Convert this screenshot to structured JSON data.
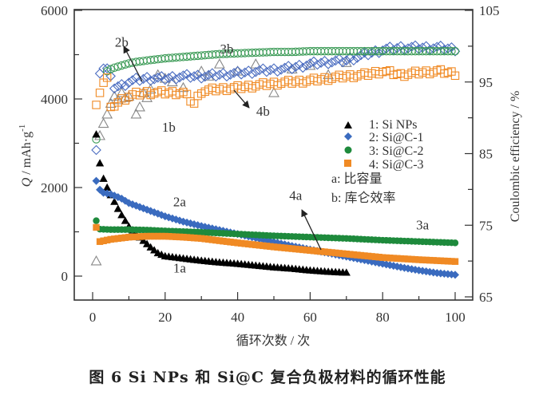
{
  "caption": "图 6   Si NPs 和 Si@C 复合负极材料的循环性能",
  "chart_data": {
    "type": "scatter",
    "title": "",
    "xlabel": "循环次数 / 次",
    "ylabel": "Q / mAh·g⁻¹",
    "ylabel_italic_part": "Q",
    "ylabel_rest": " / mAh·g",
    "ylabel_sup": "-1",
    "y2label": "Coulombic efficiency / %",
    "xlim": [
      -5,
      105
    ],
    "ylim": [
      -540,
      6000
    ],
    "y2lim": [
      65,
      105
    ],
    "xticks": [
      0,
      20,
      40,
      60,
      80,
      100
    ],
    "yticks": [
      0,
      2000,
      4000,
      6000
    ],
    "y2ticks": [
      65,
      75,
      85,
      95,
      105
    ],
    "legend": {
      "placement": "center-right",
      "entries": [
        {
          "label": "1: Si NPs",
          "marker": "triangle",
          "color": "#000000"
        },
        {
          "label": "2: Si@C-1",
          "marker": "diamond",
          "color": "#3a6bbf"
        },
        {
          "label": "3: Si@C-2",
          "marker": "circle",
          "color": "#1e8a3c"
        },
        {
          "label": "4: Si@C-3",
          "marker": "square",
          "color": "#f08a24"
        }
      ],
      "notes": [
        "a: 比容量",
        "b: 库仑效率"
      ]
    },
    "annotations": [
      {
        "text": "1a",
        "x": 24,
        "y": 80,
        "axis": "left"
      },
      {
        "text": "2a",
        "x": 24,
        "y": 1580,
        "axis": "left"
      },
      {
        "text": "3a",
        "x": 91,
        "y": 1050,
        "axis": "left"
      },
      {
        "text": "4a",
        "x": 56,
        "y": 1720,
        "axis": "left"
      },
      {
        "text": "1b",
        "x": 21,
        "y": 3260,
        "axis": "left"
      },
      {
        "text": "2b",
        "x": 8,
        "y": 5180,
        "axis": "left"
      },
      {
        "text": "3b",
        "x": 37,
        "y": 5030,
        "axis": "left"
      },
      {
        "text": "4b",
        "x": 47,
        "y": 3620,
        "axis": "left"
      }
    ],
    "series": [
      {
        "name": "1: Si NPs",
        "kind": "capacity",
        "axis": "left",
        "marker": "triangle",
        "filled": true,
        "color": "#000000",
        "x": [
          1,
          2,
          3,
          4,
          5,
          6,
          7,
          8,
          9,
          10,
          12,
          14,
          16,
          18,
          20,
          25,
          30,
          35,
          40,
          45,
          50,
          55,
          60,
          65,
          70
        ],
        "values": [
          3200,
          2550,
          2200,
          2000,
          1830,
          1680,
          1520,
          1380,
          1250,
          1120,
          950,
          800,
          650,
          520,
          450,
          400,
          350,
          310,
          280,
          240,
          200,
          170,
          130,
          100,
          80
        ]
      },
      {
        "name": "2: Si@C-1",
        "kind": "capacity",
        "axis": "left",
        "marker": "diamond",
        "filled": true,
        "color": "#3a6bbf",
        "x": [
          1,
          2,
          3,
          5,
          8,
          10,
          15,
          20,
          25,
          30,
          35,
          40,
          45,
          50,
          55,
          60,
          65,
          70,
          75,
          80,
          85,
          90,
          95,
          100
        ],
        "values": [
          2150,
          1950,
          1880,
          1850,
          1750,
          1650,
          1500,
          1350,
          1230,
          1130,
          1040,
          950,
          860,
          770,
          680,
          600,
          520,
          440,
          360,
          280,
          200,
          130,
          70,
          30
        ]
      },
      {
        "name": "3: Si@C-2",
        "kind": "capacity",
        "axis": "left",
        "marker": "circle",
        "filled": true,
        "color": "#1e8a3c",
        "x": [
          1,
          2,
          5,
          10,
          15,
          20,
          30,
          40,
          50,
          60,
          70,
          80,
          90,
          100
        ],
        "values": [
          1250,
          1060,
          1050,
          1050,
          1040,
          1020,
          990,
          950,
          910,
          880,
          850,
          810,
          780,
          750
        ]
      },
      {
        "name": "4: Si@C-3",
        "kind": "capacity",
        "axis": "left",
        "marker": "square",
        "filled": true,
        "color": "#f08a24",
        "x": [
          1,
          2,
          5,
          10,
          15,
          20,
          25,
          30,
          40,
          50,
          60,
          70,
          80,
          90,
          100
        ],
        "values": [
          1100,
          780,
          830,
          880,
          900,
          900,
          880,
          850,
          750,
          660,
          580,
          500,
          420,
          370,
          330
        ]
      },
      {
        "name": "1: Si NPs",
        "kind": "coulombic_efficiency",
        "axis": "right",
        "marker": "triangle",
        "filled": false,
        "color": "#888888",
        "x": [
          1,
          2,
          3,
          4,
          5,
          6,
          7,
          8,
          9,
          10,
          12,
          13,
          14,
          15,
          16,
          18,
          20,
          22,
          25,
          30,
          32,
          35,
          40,
          45,
          50,
          55,
          60,
          65,
          70
        ],
        "values": [
          70,
          87.5,
          89.2,
          90.5,
          92,
          93,
          92.5,
          93.5,
          92.8,
          93,
          90.5,
          91.5,
          93.5,
          92.8,
          94,
          96,
          95.5,
          95,
          94.2,
          96.5,
          95.8,
          97.5,
          96.5,
          97.5,
          93.5,
          96.8,
          97.3,
          96,
          97.7
        ]
      },
      {
        "name": "2: Si@C-1",
        "kind": "coulombic_efficiency",
        "axis": "right",
        "marker": "diamond",
        "filled": false,
        "color": "#4a6cc0",
        "x": [
          1,
          2,
          3,
          4,
          5,
          6,
          8,
          10,
          12,
          15,
          20,
          25,
          30,
          35,
          40,
          45,
          50,
          55,
          60,
          65,
          70,
          75,
          80,
          85,
          90,
          95,
          100
        ],
        "values": [
          85.5,
          96.5,
          97,
          96.8,
          95.5,
          94.3,
          94.5,
          95,
          95.3,
          95.5,
          95.5,
          95.8,
          95.8,
          96,
          96.2,
          96.5,
          96.7,
          97,
          97.5,
          97.8,
          98,
          98.8,
          99.5,
          99.8,
          99.8,
          99.8,
          99.6
        ]
      },
      {
        "name": "3: Si@C-2",
        "kind": "coulombic_efficiency",
        "axis": "right",
        "marker": "circle",
        "filled": false,
        "color": "#3a9a55",
        "x": [
          1,
          4,
          5,
          6,
          8,
          10,
          12,
          15,
          20,
          25,
          30,
          35,
          40,
          45,
          50,
          55,
          60,
          65,
          70,
          75,
          80,
          85,
          90,
          95,
          100
        ],
        "values": [
          87,
          96.5,
          96.8,
          97,
          97.3,
          97.6,
          97.8,
          98,
          98.3,
          98.5,
          98.7,
          98.9,
          99,
          99.1,
          99.2,
          99.2,
          99.3,
          99.3,
          99.3,
          99.3,
          99.3,
          99.3,
          99.3,
          99.3,
          99.3
        ]
      },
      {
        "name": "4: Si@C-3",
        "kind": "coulombic_efficiency",
        "axis": "right",
        "marker": "square",
        "filled": false,
        "color": "#f08a24",
        "x": [
          1,
          2,
          3,
          4,
          5,
          6,
          8,
          10,
          12,
          15,
          20,
          25,
          28,
          30,
          35,
          40,
          45,
          50,
          55,
          60,
          65,
          70,
          75,
          80,
          85,
          90,
          95,
          100
        ],
        "values": [
          91.8,
          93.8,
          95,
          95.5,
          91.2,
          91.8,
          92.5,
          93,
          93.3,
          93.5,
          93.5,
          93.5,
          92,
          93.7,
          94,
          94.2,
          94.5,
          94.8,
          95,
          95.2,
          95.5,
          95.8,
          96,
          96.5,
          96,
          96.3,
          96.5,
          96.2
        ]
      }
    ]
  }
}
